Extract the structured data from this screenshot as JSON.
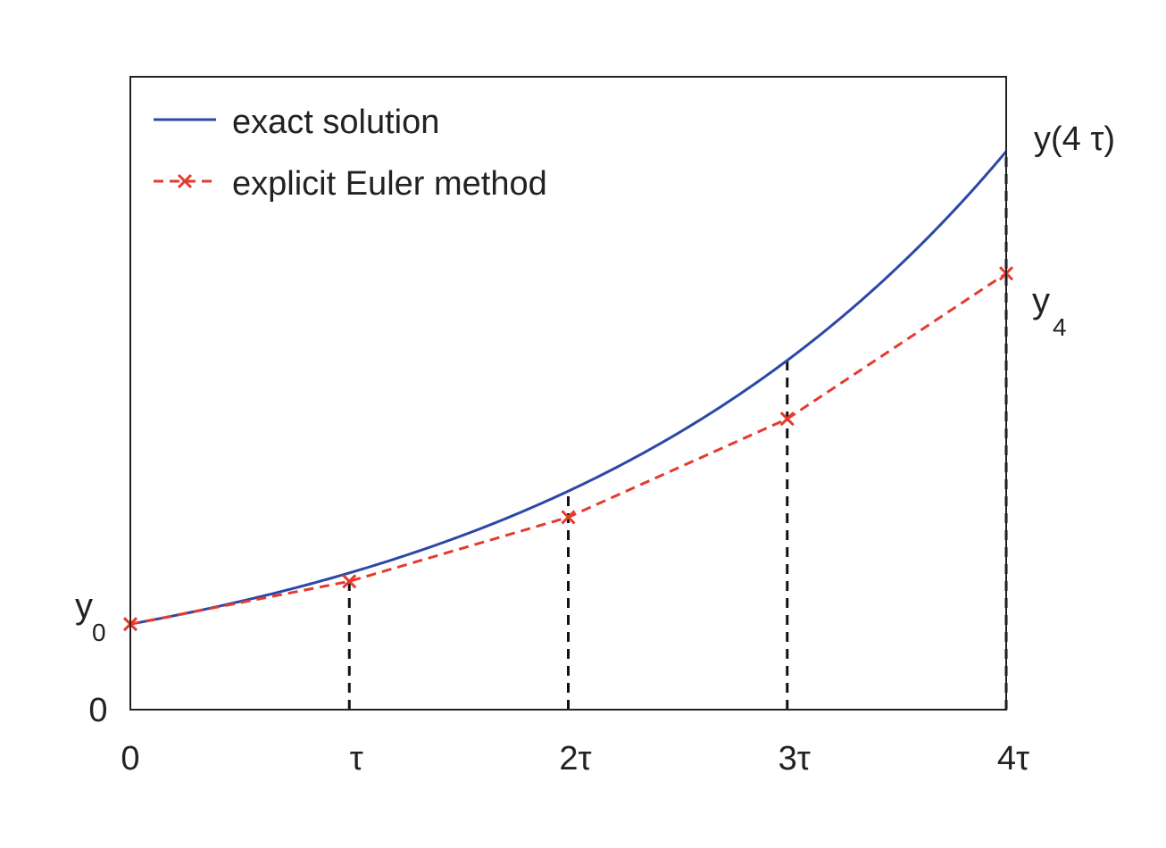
{
  "chart_data": {
    "type": "line",
    "x": [
      0,
      1,
      2,
      3,
      4
    ],
    "x_tick_labels": [
      "0",
      "τ",
      "2τ",
      "3τ",
      "4τ"
    ],
    "xlim": [
      0,
      4
    ],
    "ylim": [
      0,
      7.4
    ],
    "y_tick_label": "0",
    "series": [
      {
        "name": "exact solution",
        "style": "solid",
        "color": "#2b48a8",
        "function": "exp",
        "y0": 1,
        "rate": 0.469,
        "values_at_x": [
          1.0,
          1.6,
          2.6,
          4.1,
          6.5
        ]
      },
      {
        "name": "explicit Euler method",
        "style": "dashed",
        "marker": "x",
        "color": "#e63a2e",
        "values": [
          1.0,
          1.5,
          2.25,
          3.4,
          5.1
        ]
      }
    ],
    "annotations": {
      "y0_label": "y",
      "y0_sub": "0",
      "y4_label": "y",
      "y4_sub": "4",
      "exact_end_label": "y(4 τ)"
    },
    "guide_lines": {
      "style": "dashed",
      "color": "#111111",
      "x": [
        1,
        2,
        3,
        4
      ]
    },
    "grid": false,
    "legend_position": "top-left"
  }
}
